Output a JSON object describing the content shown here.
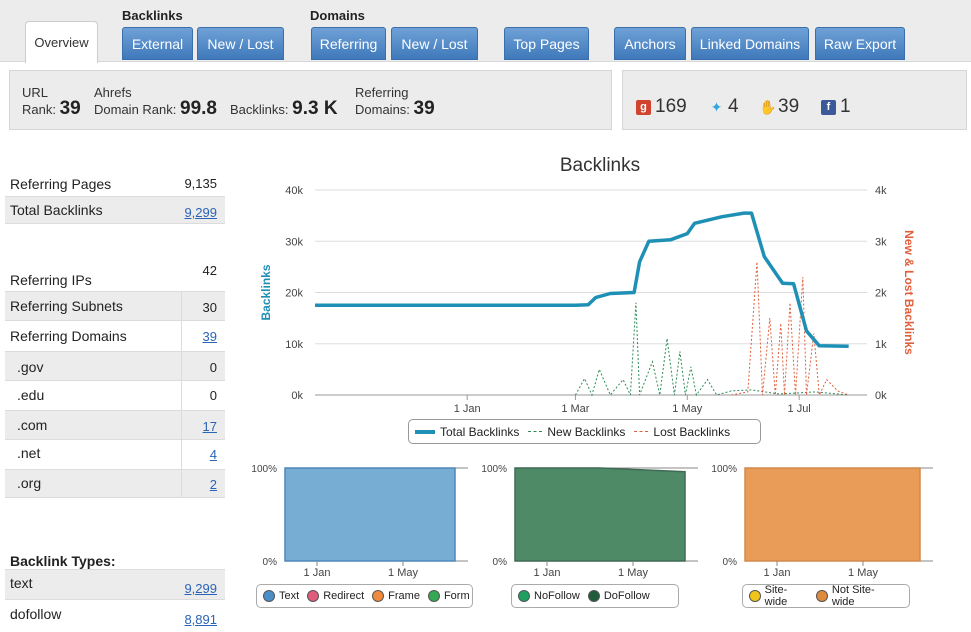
{
  "nav": {
    "overview_label": "Overview",
    "backlinks_group": "Backlinks",
    "domains_group": "Domains",
    "external_label": "External",
    "backlinks_newlost_label": "New / Lost",
    "referring_label": "Referring",
    "domains_newlost_label": "New / Lost",
    "top_pages_label": "Top Pages",
    "anchors_label": "Anchors",
    "linked_domains_label": "Linked Domains",
    "raw_export_label": "Raw Export"
  },
  "stats": {
    "url_label_1": "URL",
    "url_label_2": "Rank:",
    "url_rank": "39",
    "ahrefs_label_1": "Ahrefs",
    "ahrefs_label_2": "Domain Rank:",
    "domain_rank": "99.8",
    "backlinks_label": "Backlinks:",
    "backlinks_value": "9.3 K",
    "ref_domains_label_1": "Referring",
    "ref_domains_label_2": "Domains:",
    "ref_domains_value": "39"
  },
  "social": {
    "gplus": "169",
    "twitter": "4",
    "likes": "39",
    "facebook": "1",
    "gplus_icon": "google-plus-icon",
    "twitter_icon": "twitter-icon",
    "like_icon": "thumbs-up-icon",
    "facebook_icon": "facebook-icon"
  },
  "metrics": {
    "referring_pages": {
      "label": "Referring Pages",
      "value": "9,135"
    },
    "total_backlinks": {
      "label": "Total Backlinks",
      "value": "9,299"
    },
    "referring_ips": {
      "label": "Referring IPs",
      "value": "42"
    },
    "referring_subnets": {
      "label": "Referring Subnets",
      "value": "30"
    },
    "referring_domains": {
      "label": "Referring Domains",
      "value": "39"
    },
    "tlds": [
      {
        "label": ".gov",
        "value": "0"
      },
      {
        "label": ".edu",
        "value": "0"
      },
      {
        "label": ".com",
        "value": "17"
      },
      {
        "label": ".net",
        "value": "4"
      },
      {
        "label": ".org",
        "value": "2"
      }
    ],
    "backlink_types_heading": "Backlink Types:",
    "types": [
      {
        "label": "text",
        "value": "9,299"
      },
      {
        "label": "dofollow",
        "value": "8,891"
      }
    ]
  },
  "colors": {
    "total": "#1e90b5",
    "new": "#2e8b57",
    "lost": "#e0603c",
    "text_area": "#77add3",
    "dofollow_area": "#4f8a66",
    "notsitewide_area": "#e89c58"
  },
  "chart_data": [
    {
      "type": "line",
      "title": "Backlinks",
      "ylabel": "Backlinks",
      "y2label": "New & Lost Backlinks",
      "ylim": [
        0,
        40000
      ],
      "y2lim": [
        0,
        4000
      ],
      "yticks": [
        "0k",
        "10k",
        "20k",
        "30k",
        "40k"
      ],
      "y2ticks": [
        "0k",
        "1k",
        "2k",
        "3k",
        "4k"
      ],
      "xticks": [
        "1 Jan",
        "1 Mar",
        "1 May",
        "1 Jul"
      ],
      "xrange": [
        "2012-10-10",
        "2013-08-07"
      ],
      "grid": true,
      "legend_position": "bottom",
      "series": [
        {
          "name": "Total Backlinks",
          "axis": "left",
          "points": [
            [
              "2012-10-10",
              17500
            ],
            [
              "2013-03-01",
              17500
            ],
            [
              "2013-03-08",
              17600
            ],
            [
              "2013-03-12",
              19000
            ],
            [
              "2013-03-20",
              19800
            ],
            [
              "2013-04-02",
              20000
            ],
            [
              "2013-04-05",
              26000
            ],
            [
              "2013-04-10",
              30000
            ],
            [
              "2013-04-22",
              30300
            ],
            [
              "2013-05-01",
              31500
            ],
            [
              "2013-05-05",
              33500
            ],
            [
              "2013-05-20",
              34800
            ],
            [
              "2013-06-01",
              35500
            ],
            [
              "2013-06-05",
              35500
            ],
            [
              "2013-06-12",
              27000
            ],
            [
              "2013-06-22",
              21800
            ],
            [
              "2013-06-28",
              21700
            ],
            [
              "2013-07-05",
              12500
            ],
            [
              "2013-07-12",
              9600
            ],
            [
              "2013-07-28",
              9500
            ]
          ]
        },
        {
          "name": "New Backlinks",
          "axis": "right",
          "points": [
            [
              "2013-03-01",
              0
            ],
            [
              "2013-03-06",
              320
            ],
            [
              "2013-03-10",
              0
            ],
            [
              "2013-03-14",
              500
            ],
            [
              "2013-03-20",
              0
            ],
            [
              "2013-03-27",
              300
            ],
            [
              "2013-03-31",
              0
            ],
            [
              "2013-04-03",
              1800
            ],
            [
              "2013-04-05",
              0
            ],
            [
              "2013-04-12",
              650
            ],
            [
              "2013-04-16",
              0
            ],
            [
              "2013-04-20",
              1100
            ],
            [
              "2013-04-24",
              0
            ],
            [
              "2013-04-27",
              850
            ],
            [
              "2013-04-30",
              0
            ],
            [
              "2013-05-03",
              550
            ],
            [
              "2013-05-06",
              0
            ],
            [
              "2013-05-12",
              300
            ],
            [
              "2013-05-17",
              0
            ],
            [
              "2013-05-25",
              80
            ],
            [
              "2013-06-05",
              100
            ],
            [
              "2013-06-20",
              20
            ],
            [
              "2013-07-10",
              60
            ],
            [
              "2013-07-28",
              0
            ]
          ]
        },
        {
          "name": "Lost Backlinks",
          "axis": "right",
          "points": [
            [
              "2013-05-25",
              0
            ],
            [
              "2013-06-03",
              60
            ],
            [
              "2013-06-08",
              2600
            ],
            [
              "2013-06-11",
              0
            ],
            [
              "2013-06-15",
              1500
            ],
            [
              "2013-06-18",
              0
            ],
            [
              "2013-06-21",
              1400
            ],
            [
              "2013-06-23",
              0
            ],
            [
              "2013-06-26",
              1800
            ],
            [
              "2013-06-29",
              0
            ],
            [
              "2013-07-03",
              2300
            ],
            [
              "2013-07-05",
              0
            ],
            [
              "2013-07-09",
              1200
            ],
            [
              "2013-07-12",
              0
            ],
            [
              "2013-07-16",
              300
            ],
            [
              "2013-07-22",
              80
            ],
            [
              "2013-07-28",
              0
            ]
          ]
        }
      ]
    },
    {
      "type": "area",
      "ylim": [
        0,
        100
      ],
      "yticks": [
        "0%",
        "100%"
      ],
      "xticks": [
        "1 Jan",
        "1 May"
      ],
      "legend_position": "bottom",
      "series": [
        {
          "name": "Text",
          "color": "#4a8fc8",
          "values": [
            100,
            100
          ]
        },
        {
          "name": "Redirect",
          "color": "#e05c7a",
          "values": [
            0,
            0
          ]
        },
        {
          "name": "Frame",
          "color": "#f08a3c",
          "values": [
            0,
            0
          ]
        },
        {
          "name": "Form",
          "color": "#34a853",
          "values": [
            0,
            0
          ]
        }
      ]
    },
    {
      "type": "area",
      "ylim": [
        0,
        100
      ],
      "yticks": [
        "0%",
        "100%"
      ],
      "xticks": [
        "1 Jan",
        "1 May"
      ],
      "legend_position": "bottom",
      "series": [
        {
          "name": "NoFollow",
          "color": "#20a060",
          "values": [
            0,
            0,
            4
          ]
        },
        {
          "name": "DoFollow",
          "color": "#1f5c3c",
          "values": [
            100,
            100,
            96
          ]
        }
      ]
    },
    {
      "type": "area",
      "ylim": [
        0,
        100
      ],
      "yticks": [
        "0%",
        "100%"
      ],
      "xticks": [
        "1 Jan",
        "1 May"
      ],
      "legend_position": "bottom",
      "series": [
        {
          "name": "Site-wide",
          "color": "#f0c419",
          "values": [
            0,
            0
          ]
        },
        {
          "name": "Not Site-wide",
          "color": "#e08a3c",
          "values": [
            100,
            100
          ]
        }
      ]
    }
  ]
}
